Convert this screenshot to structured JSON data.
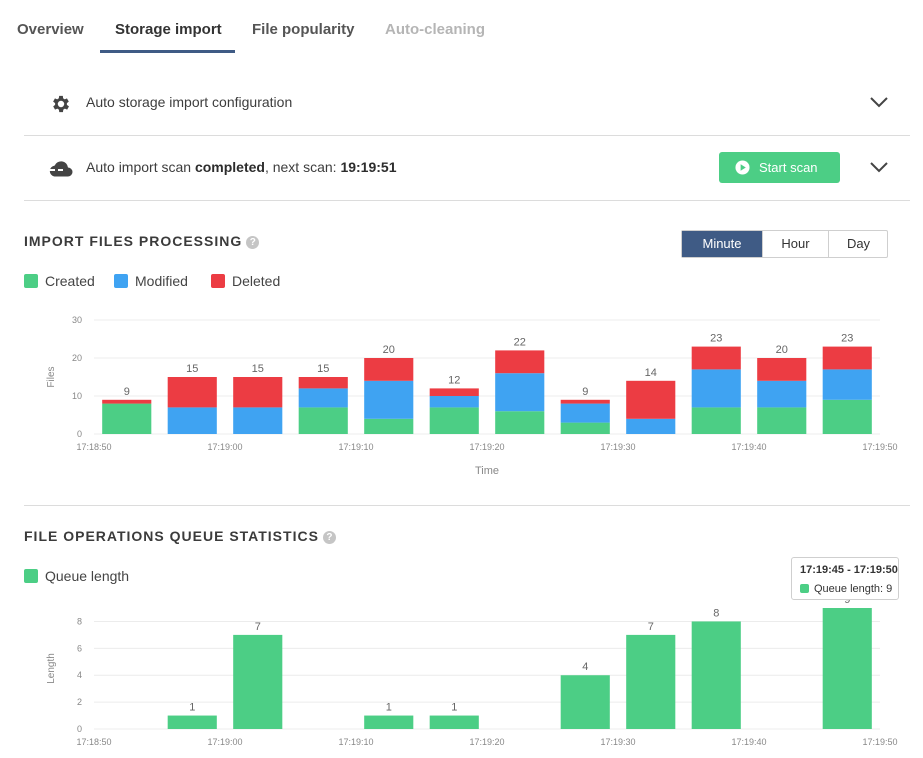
{
  "tabs": [
    {
      "label": "Overview",
      "state": "normal"
    },
    {
      "label": "Storage import",
      "state": "active"
    },
    {
      "label": "File popularity",
      "state": "normal"
    },
    {
      "label": "Auto-cleaning",
      "state": "disabled"
    }
  ],
  "config_panel": {
    "icon": "gear-icon",
    "title": "Auto storage import configuration"
  },
  "scan_panel": {
    "icon": "cloud-icon",
    "prefix": "Auto import scan ",
    "status": "completed",
    "middle": ", next scan: ",
    "next_scan": "19:19:51",
    "start_button": "Start scan"
  },
  "import_section": {
    "title": "IMPORT FILES PROCESSING",
    "help": "?",
    "granularity": {
      "options": [
        "Minute",
        "Hour",
        "Day"
      ],
      "selected": "Minute"
    },
    "legend": [
      "Created",
      "Modified",
      "Deleted"
    ]
  },
  "queue_section": {
    "title": "FILE OPERATIONS QUEUE STATISTICS",
    "help": "?",
    "legend": [
      "Queue length"
    ],
    "tooltip": {
      "title": "17:19:45 - 17:19:50",
      "label": "Queue length: 9"
    }
  },
  "colors": {
    "created": "#4cce85",
    "modified": "#3fa3f2",
    "deleted": "#ec3c43",
    "accent": "#3f5b85"
  },
  "chart_data": [
    {
      "type": "bar",
      "stacked": true,
      "title": "",
      "xlabel": "Time",
      "ylabel": "Files",
      "ylim": [
        0,
        30
      ],
      "yticks": [
        0,
        10,
        20,
        30
      ],
      "x_tick_labels": [
        "17:18:50",
        "17:19:00",
        "17:19:10",
        "17:19:20",
        "17:19:30",
        "17:19:40",
        "17:19:50"
      ],
      "bars": 12,
      "series": [
        {
          "name": "Created",
          "color": "#4cce85",
          "values": [
            8,
            0,
            0,
            7,
            4,
            7,
            6,
            3,
            0,
            7,
            7,
            9
          ]
        },
        {
          "name": "Modified",
          "color": "#3fa3f2",
          "values": [
            0,
            7,
            7,
            5,
            10,
            3,
            10,
            5,
            4,
            10,
            7,
            8
          ]
        },
        {
          "name": "Deleted",
          "color": "#ec3c43",
          "values": [
            1,
            8,
            8,
            3,
            6,
            2,
            6,
            1,
            10,
            6,
            6,
            6
          ]
        }
      ],
      "totals": [
        9,
        15,
        15,
        15,
        20,
        12,
        22,
        9,
        14,
        23,
        20,
        23
      ]
    },
    {
      "type": "bar",
      "title": "",
      "xlabel": "",
      "ylabel": "Length",
      "ylim": [
        0,
        9
      ],
      "yticks": [
        0,
        2,
        4,
        6,
        8
      ],
      "x_tick_labels": [
        "17:18:50",
        "17:19:00",
        "17:19:10",
        "17:19:20",
        "17:19:30",
        "17:19:40",
        "17:19:50"
      ],
      "bars": 12,
      "series": [
        {
          "name": "Queue length",
          "color": "#4cce85",
          "values": [
            0,
            1,
            7,
            0,
            1,
            1,
            0,
            4,
            7,
            8,
            0,
            9
          ]
        }
      ]
    }
  ]
}
